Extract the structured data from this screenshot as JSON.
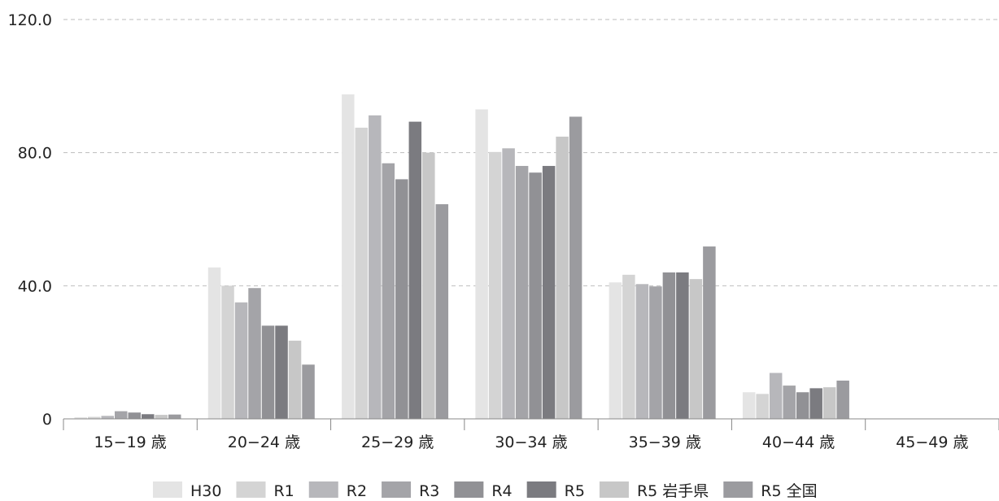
{
  "chart_data": {
    "type": "bar",
    "title": "",
    "xlabel": "",
    "ylabel": "",
    "ylim": [
      0,
      120
    ],
    "y_ticks": [
      "0",
      "40.0",
      "80.0",
      "120.0"
    ],
    "grid": true,
    "legend_position": "bottom",
    "categories": [
      "15−19 歳",
      "20−24 歳",
      "25−29 歳",
      "30−34 歳",
      "35−39 歳",
      "40−44 歳",
      "45−49 歳"
    ],
    "series": [
      {
        "name": "H30",
        "color": "#e4e4e4",
        "values": [
          0.5,
          45.5,
          97.5,
          93.0,
          41.0,
          8.0,
          0
        ]
      },
      {
        "name": "R1",
        "color": "#d4d4d4",
        "values": [
          0.6,
          40.0,
          87.5,
          80.2,
          43.3,
          7.5,
          0
        ]
      },
      {
        "name": "R2",
        "color": "#b7b7bb",
        "values": [
          0.9,
          35.0,
          91.2,
          81.3,
          40.5,
          13.8,
          0
        ]
      },
      {
        "name": "R3",
        "color": "#a4a4a8",
        "values": [
          2.3,
          39.3,
          76.8,
          76.0,
          39.8,
          10.0,
          0
        ]
      },
      {
        "name": "R4",
        "color": "#919195",
        "values": [
          1.9,
          28.0,
          72.0,
          74.0,
          44.0,
          8.0,
          0
        ]
      },
      {
        "name": "R5",
        "color": "#7b7b80",
        "values": [
          1.4,
          28.0,
          89.3,
          76.0,
          44.0,
          9.2,
          0
        ]
      },
      {
        "name": "R5 岩手県",
        "color": "#c7c7c7",
        "values": [
          1.2,
          23.5,
          80.0,
          84.8,
          42.0,
          9.5,
          0
        ]
      },
      {
        "name": "R5 全国",
        "color": "#9b9b9f",
        "values": [
          1.3,
          16.3,
          64.5,
          90.8,
          51.8,
          11.5,
          0
        ]
      }
    ]
  }
}
